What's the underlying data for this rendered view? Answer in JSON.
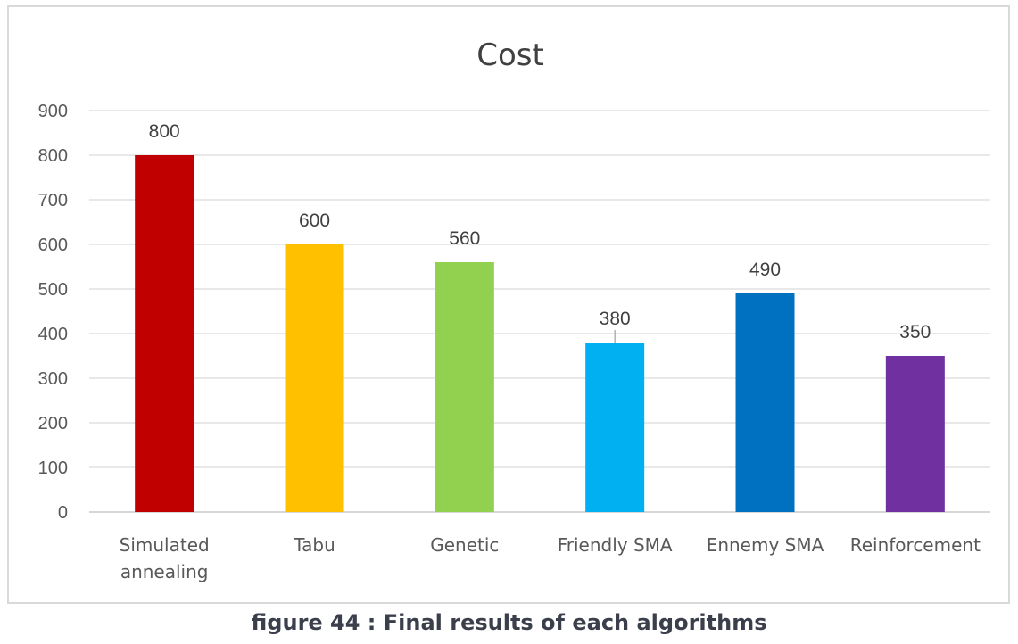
{
  "chart_data": {
    "type": "bar",
    "title": "Cost",
    "categories": [
      "Simulated annealing",
      "Tabu",
      "Genetic",
      "Friendly SMA",
      "Ennemy SMA",
      "Reinforcement"
    ],
    "category_lines": [
      [
        "Simulated",
        "annealing"
      ],
      [
        "Tabu"
      ],
      [
        "Genetic"
      ],
      [
        "Friendly SMA"
      ],
      [
        "Ennemy SMA"
      ],
      [
        "Reinforcement"
      ]
    ],
    "values": [
      800,
      600,
      560,
      380,
      490,
      350
    ],
    "data_labels": [
      "800",
      "600",
      "560",
      "380",
      "490",
      "350"
    ],
    "colors": [
      "#c00000",
      "#ffc000",
      "#92d050",
      "#00b0f0",
      "#0070c0",
      "#7030a0"
    ],
    "y_ticks": [
      0,
      100,
      200,
      300,
      400,
      500,
      600,
      700,
      800,
      900
    ],
    "ylim": [
      0,
      900
    ],
    "xlabel": "",
    "ylabel": "",
    "grid": true,
    "legend": "none"
  },
  "caption": "figure 44 : Final results of each algorithms"
}
